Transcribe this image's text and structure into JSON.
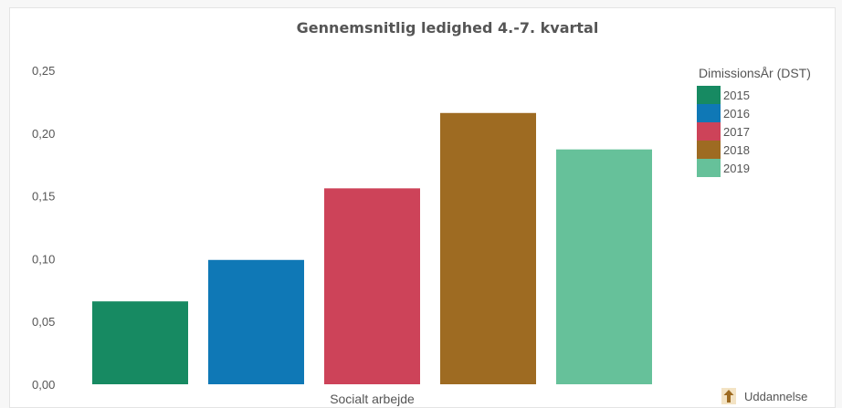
{
  "chart_data": {
    "type": "bar",
    "title": "Gennemsnitlig ledighed 4.-7. kvartal",
    "categories": [
      "Socialt arbejde"
    ],
    "legend_title": "DimissionsÅr (DST)",
    "series": [
      {
        "name": "2015",
        "values": [
          0.066
        ],
        "color": "#178a62"
      },
      {
        "name": "2016",
        "values": [
          0.099
        ],
        "color": "#0f78b6"
      },
      {
        "name": "2017",
        "values": [
          0.156
        ],
        "color": "#cd4359"
      },
      {
        "name": "2018",
        "values": [
          0.216
        ],
        "color": "#9e6b22"
      },
      {
        "name": "2019",
        "values": [
          0.187
        ],
        "color": "#66c19a"
      }
    ],
    "ylim": [
      0,
      0.25
    ],
    "yticks": [
      "0,00",
      "0,05",
      "0,10",
      "0,15",
      "0,20",
      "0,25"
    ],
    "grid": false,
    "legend_position": "top-right"
  },
  "dimension_button": {
    "label": "Uddannelse",
    "icon": "up-arrow-icon",
    "icon_color": "#9e6b22"
  }
}
